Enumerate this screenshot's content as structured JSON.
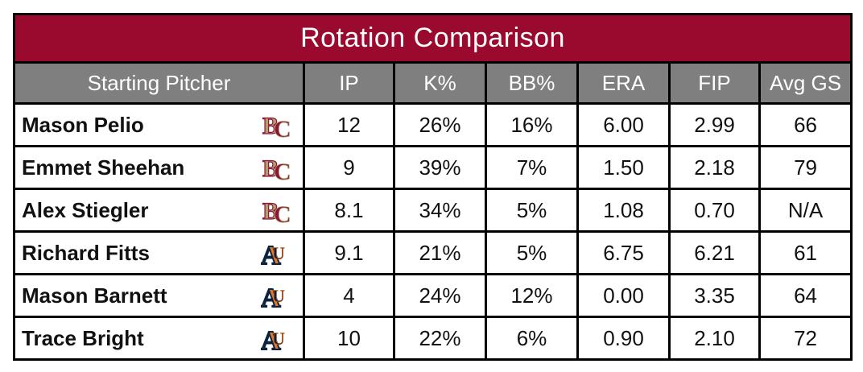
{
  "title": "Rotation Comparison",
  "headers": [
    "Starting Pitcher",
    "IP",
    "K%",
    "BB%",
    "ERA",
    "FIP",
    "Avg GS"
  ],
  "rows": [
    {
      "name": "Mason Pelio",
      "logo": "bc-logo-icon",
      "ip": "12",
      "k": "26%",
      "bb": "16%",
      "era": "6.00",
      "fip": "2.99",
      "gs": "66"
    },
    {
      "name": "Emmet Sheehan",
      "logo": "bc-logo-icon",
      "ip": "9",
      "k": "39%",
      "bb": "7%",
      "era": "1.50",
      "fip": "2.18",
      "gs": "79"
    },
    {
      "name": "Alex Stiegler",
      "logo": "bc-logo-icon",
      "ip": "8.1",
      "k": "34%",
      "bb": "5%",
      "era": "1.08",
      "fip": "0.70",
      "gs": "N/A"
    },
    {
      "name": "Richard Fitts",
      "logo": "au-logo-icon",
      "ip": "9.1",
      "k": "21%",
      "bb": "5%",
      "era": "6.75",
      "fip": "6.21",
      "gs": "61"
    },
    {
      "name": "Mason Barnett",
      "logo": "au-logo-icon",
      "ip": "4",
      "k": "24%",
      "bb": "12%",
      "era": "0.00",
      "fip": "3.35",
      "gs": "64"
    },
    {
      "name": "Trace Bright",
      "logo": "au-logo-icon",
      "ip": "10",
      "k": "22%",
      "bb": "6%",
      "era": "0.90",
      "fip": "2.10",
      "gs": "72"
    }
  ],
  "colors": {
    "title_bg": "#9a0a2e",
    "header_bg": "#7f7f7f",
    "bc_maroon": "#8a1538",
    "bc_gold": "#b29d6c",
    "au_navy": "#0c2340",
    "au_orange": "#e87722"
  }
}
